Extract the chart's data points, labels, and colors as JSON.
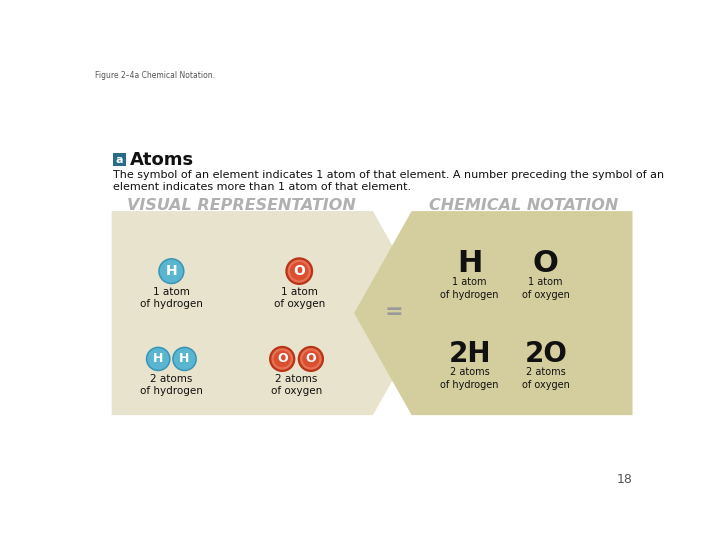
{
  "fig_label": "Figure 2–4a Chemical Notation.",
  "bg_color": "#ffffff",
  "section_label": "a",
  "section_label_bg": "#2a6b8a",
  "section_title": "Atoms",
  "body_text_1": "The symbol of an element indicates 1 atom of that element. A number preceding the symbol of an",
  "body_text_2": "element indicates more than 1 atom of that element.",
  "header_left": "VISUAL REPRESENTATION",
  "header_right": "CHEMICAL NOTATION",
  "header_color": "#b0b0b0",
  "shape_left_color": "#e8e3cc",
  "shape_right_color": "#d4ce9e",
  "hydrogen_color": "#5ab5d0",
  "hydrogen_border": "#3a95b5",
  "oxygen_fill": "#d94f30",
  "oxygen_border": "#b83518",
  "oxygen_inner": "#e87055",
  "page_number": "18"
}
